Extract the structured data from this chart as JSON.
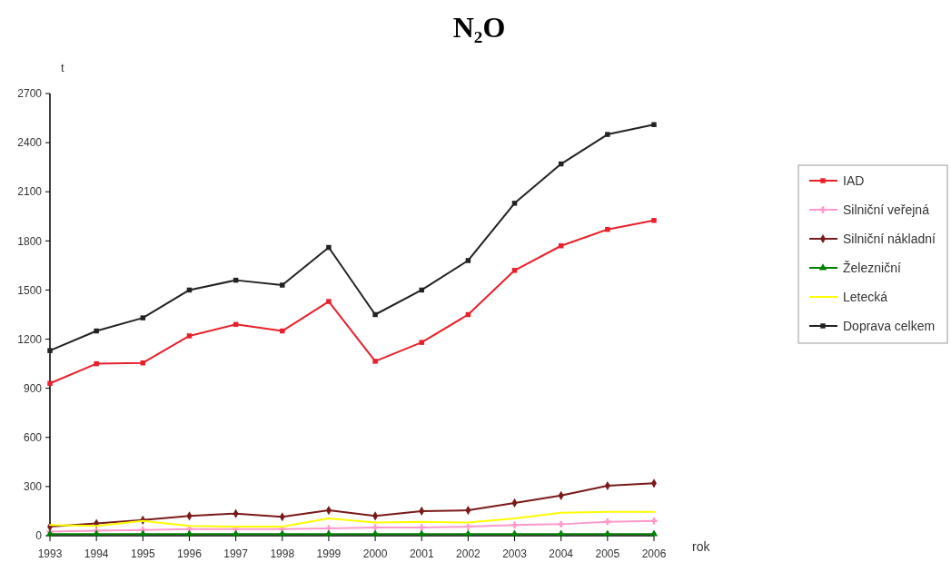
{
  "chart_data": {
    "type": "line",
    "title": "N₂O",
    "xlabel": "rok",
    "ylabel": "t",
    "x": [
      1993,
      1994,
      1995,
      1996,
      1997,
      1998,
      1999,
      2000,
      2001,
      2002,
      2003,
      2004,
      2005,
      2006
    ],
    "xlim": [
      1993,
      2006
    ],
    "xticks": [
      1993,
      1994,
      1995,
      1996,
      1997,
      1998,
      1999,
      2000,
      2001,
      2002,
      2003,
      2004,
      2005,
      2006
    ],
    "ylim": [
      0,
      2700
    ],
    "yticks": [
      0,
      300,
      600,
      900,
      1200,
      1500,
      1800,
      2100,
      2400,
      2700
    ],
    "legend": "right",
    "series": [
      {
        "name": "IAD",
        "color": "#e8202a",
        "marker": "square",
        "values": [
          930,
          1050,
          1055,
          1220,
          1290,
          1250,
          1430,
          1065,
          1180,
          1350,
          1620,
          1770,
          1870,
          1925
        ]
      },
      {
        "name": "Silniční veřejná",
        "color": "#ff99cc",
        "marker": "cross",
        "values": [
          25,
          30,
          35,
          40,
          40,
          40,
          45,
          50,
          50,
          55,
          65,
          70,
          85,
          90
        ]
      },
      {
        "name": "Silniční nákladní",
        "color": "#7a1a1a",
        "marker": "diamond",
        "values": [
          55,
          75,
          95,
          120,
          135,
          115,
          155,
          120,
          150,
          155,
          200,
          245,
          305,
          320
        ]
      },
      {
        "name": "Železniční",
        "color": "#008000",
        "marker": "triangle",
        "values": [
          10,
          10,
          10,
          10,
          10,
          10,
          10,
          10,
          10,
          10,
          10,
          10,
          10,
          10
        ]
      },
      {
        "name": "Letecká",
        "color": "#ffff00",
        "marker": "none",
        "values": [
          65,
          60,
          90,
          60,
          55,
          55,
          105,
          80,
          85,
          80,
          105,
          140,
          145,
          145
        ]
      },
      {
        "name": "Doprava celkem",
        "color": "#222222",
        "marker": "square",
        "values": [
          1130,
          1250,
          1330,
          1500,
          1560,
          1530,
          1760,
          1350,
          1500,
          1680,
          2030,
          2270,
          2450,
          2510
        ]
      }
    ]
  }
}
